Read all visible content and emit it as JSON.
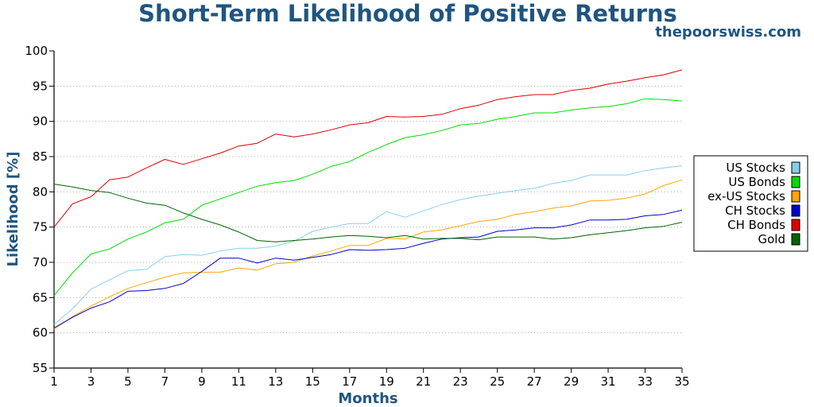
{
  "chart_data": {
    "type": "line",
    "title": "Short-Term Likelihood of Positive Returns",
    "subtitle": "thepoorswiss.com",
    "xlabel": "Months",
    "ylabel": "Likelihood [%]",
    "xlim": [
      1,
      35
    ],
    "ylim": [
      55,
      100
    ],
    "xticks": [
      1,
      3,
      5,
      7,
      9,
      11,
      13,
      15,
      17,
      19,
      21,
      23,
      25,
      27,
      29,
      31,
      33,
      35
    ],
    "yticks": [
      55,
      60,
      65,
      70,
      75,
      80,
      85,
      90,
      95,
      100
    ],
    "grid": "horizontal dotted",
    "legend_position": "right",
    "x": [
      1,
      2,
      3,
      4,
      5,
      6,
      7,
      8,
      9,
      10,
      11,
      12,
      13,
      14,
      15,
      16,
      17,
      18,
      19,
      20,
      21,
      22,
      23,
      24,
      25,
      26,
      27,
      28,
      29,
      30,
      31,
      32,
      33,
      34,
      35
    ],
    "series": [
      {
        "name": "US Stocks",
        "color": "#87ceeb",
        "values": [
          61.2,
          63.4,
          66.2,
          67.5,
          68.8,
          69,
          70.8,
          71.1,
          71,
          71.6,
          72,
          72,
          72.3,
          73,
          74.4,
          75,
          75.5,
          75.5,
          77.2,
          76.4,
          77.3,
          78.2,
          78.9,
          79.4,
          79.8,
          80.2,
          80.5,
          81.2,
          81.6,
          82.4,
          82.4,
          82.4,
          83,
          83.4,
          83.7
        ]
      },
      {
        "name": "US Bonds",
        "color": "#00dd00",
        "values": [
          65.3,
          68.5,
          71.2,
          71.9,
          73.3,
          74.3,
          75.6,
          76.1,
          78.1,
          79,
          79.9,
          80.8,
          81.3,
          81.6,
          82.5,
          83.6,
          84.3,
          85.6,
          86.7,
          87.7,
          88.1,
          88.7,
          89.5,
          89.7,
          90.3,
          90.7,
          91.2,
          91.2,
          91.6,
          91.9,
          92.1,
          92.5,
          93.2,
          93.1,
          92.9
        ]
      },
      {
        "name": "ex-US Stocks",
        "color": "#ffa500",
        "values": [
          60.5,
          62.3,
          63.8,
          65.1,
          66.3,
          67.1,
          67.9,
          68.5,
          68.6,
          68.6,
          69.2,
          68.9,
          69.8,
          70,
          70.9,
          71.6,
          72.4,
          72.4,
          73.4,
          73.3,
          74.3,
          74.6,
          75.2,
          75.8,
          76.1,
          76.8,
          77.2,
          77.7,
          78,
          78.7,
          78.8,
          79.1,
          79.7,
          80.9,
          81.7
        ]
      },
      {
        "name": "CH Stocks",
        "color": "#0000cd",
        "values": [
          60.7,
          62.2,
          63.5,
          64.4,
          65.9,
          66,
          66.3,
          67,
          68.7,
          70.6,
          70.6,
          69.9,
          70.6,
          70.3,
          70.7,
          71.1,
          71.8,
          71.7,
          71.8,
          72,
          72.7,
          73.3,
          73.5,
          73.6,
          74.4,
          74.6,
          74.9,
          74.9,
          75.3,
          76,
          76,
          76.1,
          76.6,
          76.8,
          77.4
        ]
      },
      {
        "name": "CH Bonds",
        "color": "#dd0000",
        "values": [
          75,
          78.3,
          79.3,
          81.7,
          82.1,
          83.4,
          84.6,
          83.9,
          84.7,
          85.5,
          86.5,
          86.9,
          88.2,
          87.8,
          88.2,
          88.8,
          89.5,
          89.8,
          90.7,
          90.6,
          90.7,
          91,
          91.8,
          92.3,
          93.1,
          93.5,
          93.8,
          93.8,
          94.4,
          94.7,
          95.3,
          95.7,
          96.2,
          96.6,
          97.3
        ]
      },
      {
        "name": "Gold",
        "color": "#006400",
        "values": [
          81.1,
          80.7,
          80.2,
          79.9,
          79.1,
          78.4,
          78.1,
          77,
          76.1,
          75.3,
          74.3,
          73.1,
          72.9,
          73.1,
          73.3,
          73.6,
          73.8,
          73.7,
          73.5,
          73.8,
          73.3,
          73.4,
          73.4,
          73.2,
          73.6,
          73.6,
          73.6,
          73.3,
          73.5,
          73.9,
          74.2,
          74.5,
          74.9,
          75.1,
          75.7
        ]
      }
    ]
  }
}
